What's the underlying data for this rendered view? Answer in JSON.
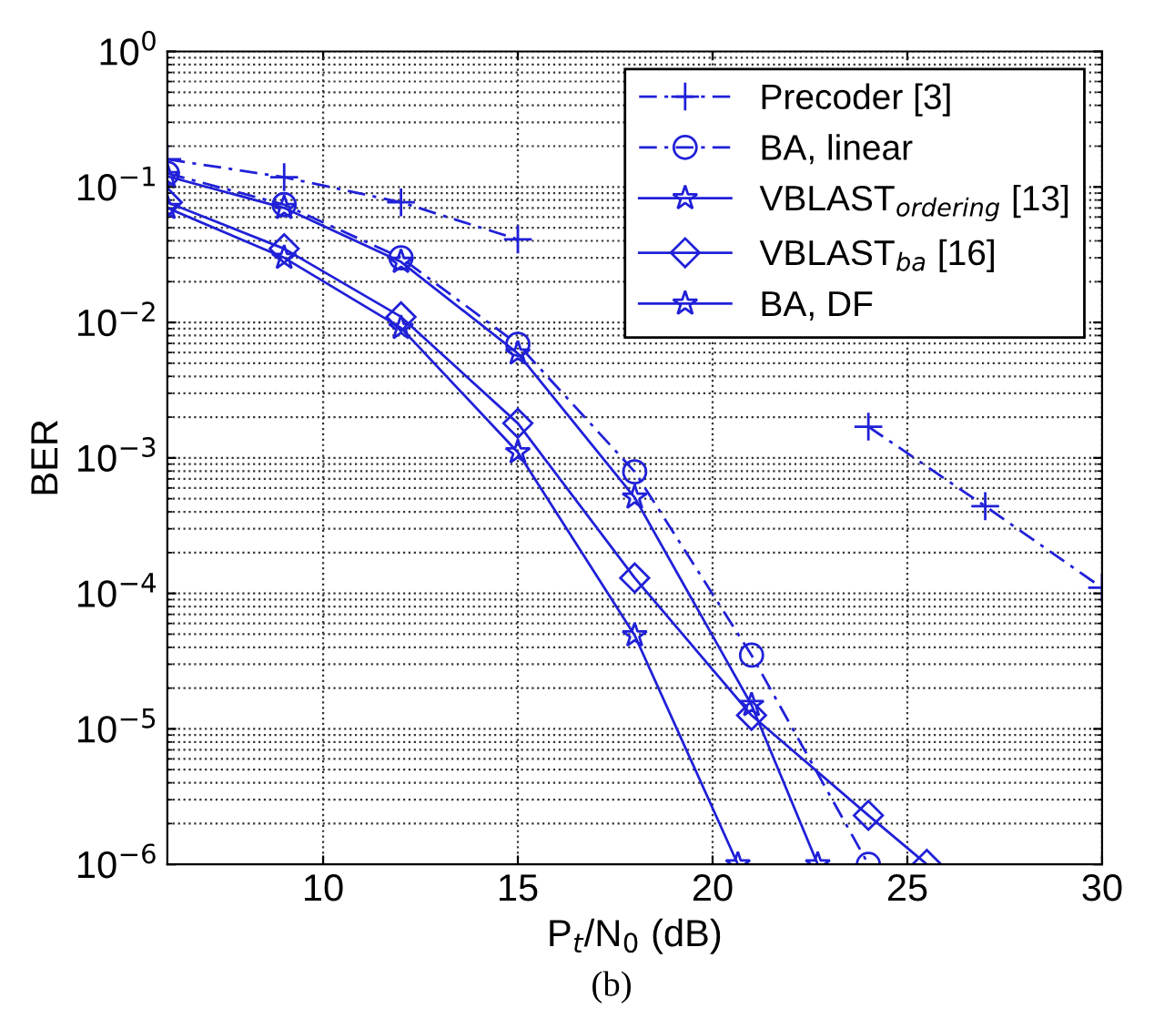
{
  "chart_data": {
    "type": "line",
    "xlabel": "P$_{t}$/N$_{0}$ (dB)",
    "ylabel": "BER",
    "annotations": [
      "(b)"
    ],
    "log": "y",
    "grid": true,
    "legend": "top right",
    "xlim": [
      6,
      30
    ],
    "xticks": [
      10,
      15,
      20,
      25,
      30
    ],
    "ylim": [
      1e-06,
      1
    ],
    "yticks": [
      {
        "value": 1e-06,
        "label": "10$^{−6}$"
      },
      {
        "value": 1e-05,
        "label": "10$^{−5}$"
      },
      {
        "value": 0.0001,
        "label": "10$^{−4}$"
      },
      {
        "value": 0.001,
        "label": "10$^{−3}$"
      },
      {
        "value": 0.01,
        "label": "10$^{−2}$"
      },
      {
        "value": 0.1,
        "label": "10$^{−1}$"
      },
      {
        "value": 1,
        "label": "10$^{0}$"
      }
    ],
    "series": [
      {
        "name": "Precoder [3]",
        "color": "#2020d8",
        "marker": "cross",
        "line_style": "dashed",
        "x": [
          6,
          9,
          12,
          15,
          18,
          21,
          24,
          27,
          30
        ],
        "values": [
          0.16,
          0.118,
          0.077,
          0.041,
          null,
          null,
          0.0017,
          0.00044,
          0.00011
        ]
      },
      {
        "name": "BA, linear",
        "color": "#2020d8",
        "marker": "circle",
        "line_style": "dashed",
        "x": [
          6,
          9,
          12,
          15,
          18,
          21,
          24
        ],
        "values": [
          0.126,
          0.074,
          0.03,
          0.0069,
          0.00079,
          3.5e-05,
          1e-06
        ]
      },
      {
        "name": "VBLAST$_{ordering}$ [13]",
        "color": "#2020d8",
        "marker": "star",
        "line_style": "solid",
        "x": [
          6,
          9,
          12,
          15,
          18,
          21,
          22.7
        ],
        "values": [
          0.12,
          0.07,
          0.028,
          0.0059,
          0.00051,
          1.5e-05,
          1e-06
        ]
      },
      {
        "name": "VBLAST$_{ba}$ [16]",
        "color": "#2020d8",
        "marker": "diamond",
        "line_style": "solid",
        "x": [
          6,
          9,
          12,
          15,
          18,
          21,
          24,
          25.5
        ],
        "values": [
          0.077,
          0.035,
          0.011,
          0.0018,
          0.00013,
          1.26e-05,
          2.3e-06,
          1e-06
        ]
      },
      {
        "name": "BA, DF",
        "color": "#2020d8",
        "marker": "star",
        "line_style": "solid",
        "x": [
          6,
          9,
          12,
          15,
          18,
          20.65
        ],
        "values": [
          0.07,
          0.03,
          0.0091,
          0.0011,
          4.9e-05,
          1e-06
        ]
      }
    ]
  }
}
